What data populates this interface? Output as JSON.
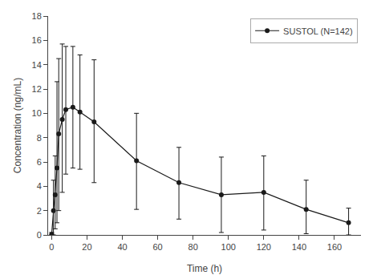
{
  "chart_data": {
    "type": "line",
    "x": [
      0,
      1,
      2,
      3,
      4,
      6,
      8,
      12,
      16,
      24,
      48,
      72,
      96,
      120,
      144,
      168
    ],
    "series": [
      {
        "name": "SUSTOL (N=142)",
        "color": "#1a1a1a",
        "marker": "circle",
        "line_style": "solid",
        "values": [
          0.05,
          2.0,
          3.3,
          5.5,
          8.3,
          9.5,
          10.3,
          10.5,
          10.1,
          9.3,
          6.1,
          4.3,
          3.3,
          3.5,
          2.1,
          1.0
        ],
        "error_plus": [
          0.15,
          2.5,
          3.2,
          7.1,
          6.2,
          6.2,
          5.2,
          5.0,
          4.7,
          5.1,
          3.9,
          2.9,
          3.1,
          3.0,
          2.4,
          1.2
        ],
        "error_minus": [
          0.05,
          2.0,
          2.8,
          4.5,
          6.3,
          6.0,
          5.3,
          5.0,
          4.7,
          5.0,
          4.0,
          3.0,
          3.1,
          3.1,
          2.0,
          1.0
        ]
      }
    ],
    "xlabel": "Time (h)",
    "ylabel": "Concentration (ng/mL)",
    "xlim": [
      -2,
      175
    ],
    "ylim": [
      0,
      18
    ],
    "xticks": [
      0,
      20,
      40,
      60,
      80,
      100,
      120,
      140,
      160
    ],
    "yticks": [
      0,
      2,
      4,
      6,
      8,
      10,
      12,
      14,
      16,
      18
    ],
    "grid": false,
    "legend": "upper right"
  }
}
